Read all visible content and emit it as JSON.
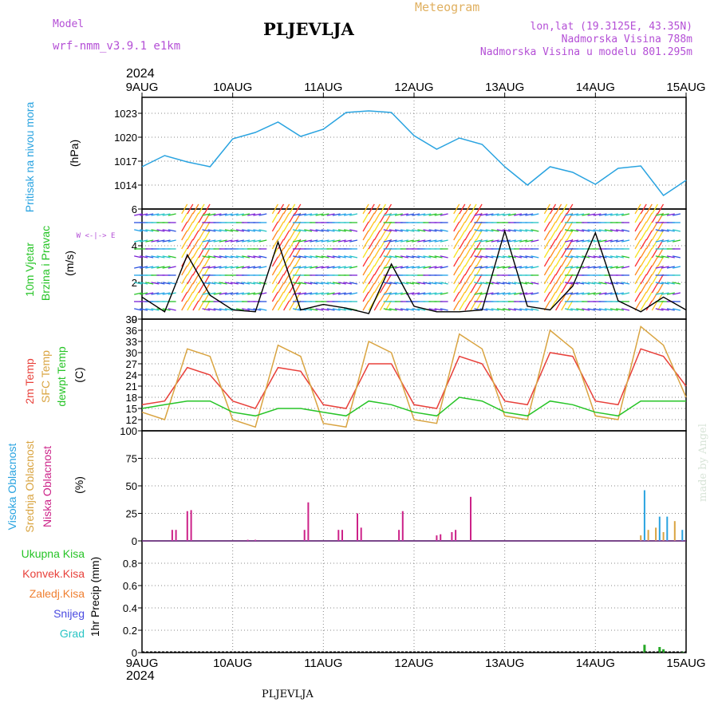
{
  "header": {
    "model_label": "Model",
    "model_name": "wrf-nmm_v3.9.1  e1km",
    "station": "PLJEVLJA",
    "meteogram": "Meteogram",
    "coords": "lon,lat (19.3125E, 43.35N)",
    "altitude": "Nadmorska Visina 788m",
    "model_altitude": "Nadmorska Visina u modelu 801.295m",
    "footer_station": "PLJEVLJA",
    "watermark": "made by Angel"
  },
  "colors": {
    "pressure": "#29a3e0",
    "temp2m": "#e8403a",
    "sfc_temp": "#d9a441",
    "dewpt": "#27c427",
    "cloud_high": "#29a3e0",
    "cloud_mid": "#d9a441",
    "cloud_low": "#cc2288",
    "header_purple": "#b44fd6",
    "header_gold": "#e0b060"
  },
  "time_axis": {
    "year": "2024",
    "dates": [
      "9AUG",
      "10AUG",
      "11AUG",
      "12AUG",
      "13AUG",
      "14AUG",
      "15AUG"
    ]
  },
  "panel_labels": {
    "pressure": {
      "name": "Pritisak na nivou mora",
      "unit": "(hPa)"
    },
    "wind": {
      "name1": "10m Vjetar",
      "name2": "Brzina i Pravac",
      "unit": "(m/s)",
      "rose": "W <-|-> E"
    },
    "temp": {
      "t2m": "2m Temp",
      "sfc": "SFC Temp",
      "dew": "dewpt Temp",
      "unit": "(C)"
    },
    "cloud": {
      "high": "Visoka Oblacnost",
      "mid": "Srednja Oblacnost",
      "low": "Niska Oblacnost",
      "unit": "(%)"
    },
    "precip": {
      "total": "Ukupna Kisa",
      "conv": "Konvek.Kisa",
      "frozen": "Zaledj.Kisa",
      "snow": "Snijeg",
      "hail": "Grad",
      "unit": "1hr Precip (mm)"
    }
  },
  "chart_data": [
    {
      "type": "line",
      "title": "",
      "ylabel": "Pritisak na nivou mora (hPa)",
      "ylim": [
        1011,
        1025
      ],
      "yticks": [
        "1014",
        "1017",
        "1020",
        "1023"
      ],
      "x_hours": [
        0,
        6,
        12,
        18,
        24,
        30,
        36,
        42,
        48,
        54,
        60,
        66,
        72,
        78,
        84,
        90,
        96,
        102,
        108,
        114,
        120,
        126,
        132,
        138,
        144
      ],
      "series": [
        {
          "values": [
            1016.3,
            1017.7,
            1016.9,
            1016.3,
            1019.8,
            1020.6,
            1021.9,
            1020.1,
            1021.0,
            1023.1,
            1023.3,
            1023.1,
            1020.2,
            1018.5,
            1019.9,
            1019.1,
            1016.3,
            1014.0,
            1016.3,
            1015.6,
            1014.1,
            1016.1,
            1016.4,
            1012.7,
            1014.6
          ]
        }
      ]
    },
    {
      "type": "line",
      "title": "",
      "ylabel": "10m Vjetar Brzina i Pravac (m/s)",
      "ylim": [
        0,
        6
      ],
      "yticks": [
        "0",
        "2",
        "4",
        "6"
      ],
      "x_hours": [
        0,
        6,
        12,
        18,
        24,
        30,
        36,
        42,
        48,
        54,
        60,
        66,
        72,
        78,
        84,
        90,
        96,
        102,
        108,
        114,
        120,
        126,
        132,
        138,
        144
      ],
      "series": [
        {
          "values": [
            1.2,
            0.4,
            3.5,
            1.3,
            0.5,
            0.4,
            4.2,
            0.5,
            0.8,
            0.6,
            0.3,
            3.0,
            0.7,
            0.4,
            0.4,
            0.5,
            4.8,
            0.7,
            0.5,
            1.8,
            4.7,
            1.0,
            0.4,
            1.2,
            0.5
          ]
        }
      ]
    },
    {
      "type": "line",
      "title": "",
      "ylabel": "Temp (C)",
      "ylim": [
        9,
        39
      ],
      "yticks": [
        "12",
        "15",
        "18",
        "21",
        "24",
        "27",
        "30",
        "33",
        "36",
        "39"
      ],
      "x_hours": [
        0,
        6,
        12,
        18,
        24,
        30,
        36,
        42,
        48,
        54,
        60,
        66,
        72,
        78,
        84,
        90,
        96,
        102,
        108,
        114,
        120,
        126,
        132,
        138,
        144
      ],
      "series": [
        {
          "name": "2m Temp",
          "values": [
            16,
            17,
            26,
            24,
            17,
            15,
            26,
            25,
            16,
            15,
            27,
            27,
            16,
            15,
            29,
            27,
            17,
            16,
            30,
            29,
            17,
            16,
            31,
            29,
            21
          ]
        },
        {
          "name": "SFC Temp",
          "values": [
            14,
            12,
            31,
            29,
            12,
            10,
            32,
            29,
            11,
            10,
            33,
            30,
            12,
            11,
            35,
            31,
            13,
            12,
            36,
            31,
            13,
            12,
            37,
            32,
            18
          ]
        },
        {
          "name": "dewpt Temp",
          "values": [
            15,
            16,
            17,
            17,
            14,
            13,
            15,
            15,
            14,
            13,
            17,
            16,
            14,
            13,
            18,
            17,
            14,
            13,
            17,
            16,
            14,
            13,
            17,
            17,
            17
          ]
        }
      ]
    },
    {
      "type": "bar",
      "title": "",
      "ylabel": "Oblacnost (%)",
      "ylim": [
        0,
        100
      ],
      "yticks": [
        "0",
        "25",
        "50",
        "75",
        "100"
      ],
      "series": [
        {
          "name": "Niska Oblacnost",
          "x_hours": [
            8,
            9,
            12,
            13,
            28,
            30,
            43,
            44,
            52,
            53,
            57,
            58,
            68,
            69,
            78,
            79,
            82,
            83,
            87
          ],
          "values": [
            10,
            10,
            27,
            28,
            1,
            1,
            10,
            35,
            10,
            10,
            25,
            12,
            10,
            27,
            5,
            6,
            8,
            10,
            40
          ]
        },
        {
          "name": "Srednja Oblacnost",
          "x_hours": [
            132,
            134,
            136,
            138,
            141
          ],
          "values": [
            5,
            10,
            12,
            8,
            18
          ]
        },
        {
          "name": "Visoka Oblacnost",
          "x_hours": [
            133,
            137,
            139,
            143
          ],
          "values": [
            46,
            22,
            22,
            10
          ]
        }
      ]
    },
    {
      "type": "bar",
      "title": "",
      "ylabel": "1hr Precip (mm)",
      "ylim": [
        0,
        1.0
      ],
      "yticks": [
        "0",
        "0.2",
        "0.4",
        "0.6",
        "0.8"
      ],
      "series": [
        {
          "name": "Ukupna Kisa",
          "x_hours": [
            133,
            137,
            138,
            143
          ],
          "values": [
            0.07,
            0.05,
            0.03,
            0.01
          ]
        }
      ]
    }
  ]
}
